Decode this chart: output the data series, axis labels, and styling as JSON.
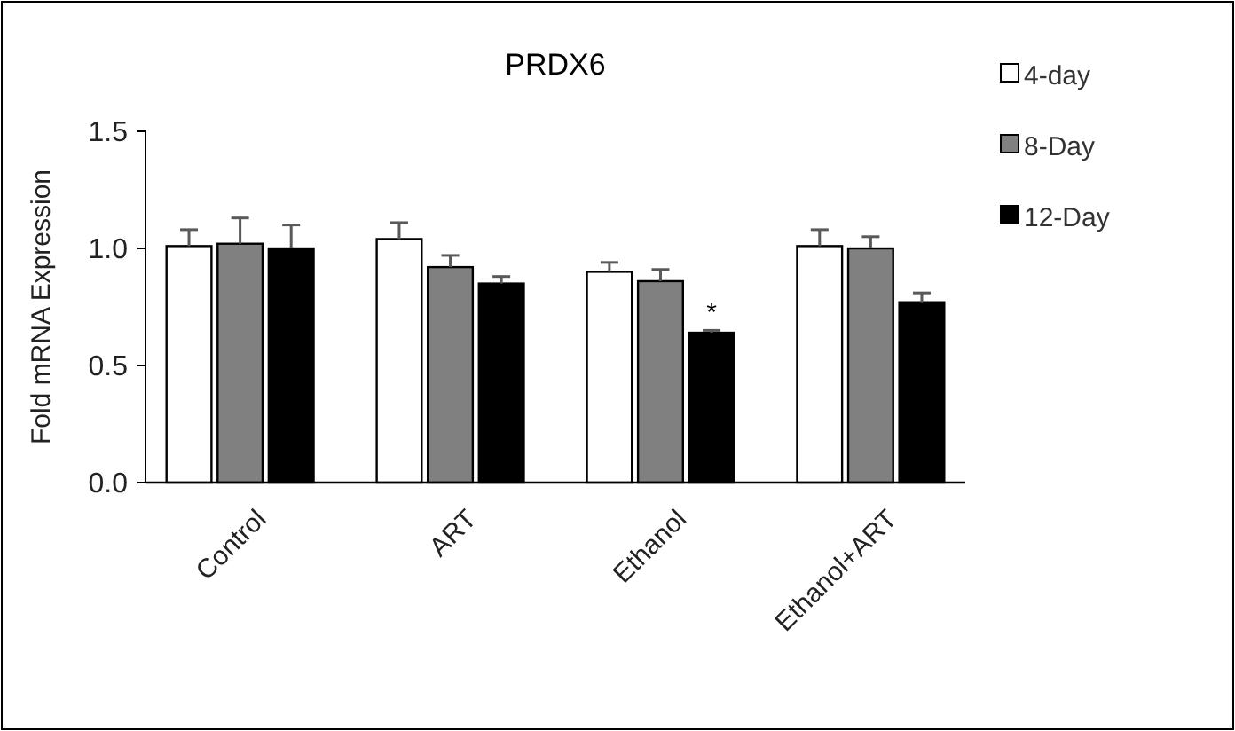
{
  "chart_data": {
    "type": "bar",
    "title": "PRDX6",
    "ylabel": "Fold mRNA Expression",
    "categories": [
      "Control",
      "ART",
      "Ethanol",
      "Ethanol+ART"
    ],
    "series": [
      {
        "name": "4-day",
        "color": "#ffffff",
        "values": [
          1.01,
          1.04,
          0.9,
          1.01
        ],
        "errors": [
          [
            1.01,
            1.08
          ],
          [
            1.04,
            1.11
          ],
          [
            0.9,
            0.94
          ],
          [
            1.01,
            1.08
          ]
        ]
      },
      {
        "name": "8-Day",
        "color": "#808080",
        "values": [
          1.02,
          0.92,
          0.86,
          1.0
        ],
        "errors": [
          [
            1.02,
            1.13
          ],
          [
            0.92,
            0.97
          ],
          [
            0.86,
            0.91
          ],
          [
            1.0,
            1.05
          ]
        ]
      },
      {
        "name": "12-Day",
        "color": "#000000",
        "values": [
          1.0,
          0.85,
          0.64,
          0.77
        ],
        "errors": [
          [
            1.0,
            1.1
          ],
          [
            0.85,
            0.88
          ],
          [
            0.64,
            0.65
          ],
          [
            0.77,
            0.81
          ]
        ]
      }
    ],
    "ylim": [
      0,
      1.5
    ],
    "yticks": [
      {
        "value": 0,
        "label": "0.0"
      },
      {
        "value": 0.5,
        "label": "0.5"
      },
      {
        "value": 1,
        "label": "1.0"
      },
      {
        "value": 1.5,
        "label": "1.5"
      }
    ],
    "legend": "right",
    "grid": false,
    "annotations": [
      {
        "text": "*",
        "x": "Ethanol",
        "y": 0.69
      }
    ]
  }
}
